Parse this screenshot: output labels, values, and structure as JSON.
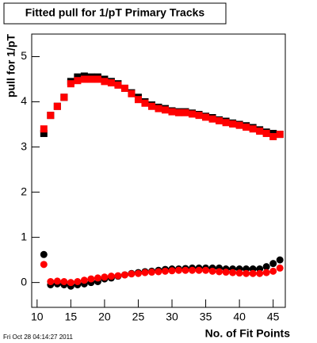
{
  "chart_data": {
    "type": "scatter",
    "title": "Fitted pull for 1/pT Primary Tracks",
    "x_label": "No. of Fit Points",
    "y_label": "pull for 1/pT",
    "timestamp": "Fri Oct 28 04:14:27 2011",
    "x": [
      11,
      12,
      13,
      14,
      15,
      16,
      17,
      18,
      19,
      20,
      21,
      22,
      23,
      24,
      25,
      26,
      27,
      28,
      29,
      30,
      31,
      32,
      33,
      34,
      35,
      36,
      37,
      38,
      39,
      40,
      41,
      42,
      43,
      44,
      45,
      46
    ],
    "series": [
      {
        "color": "#000000",
        "marker": "square",
        "values": [
          3.3,
          3.7,
          3.9,
          4.1,
          4.45,
          4.55,
          4.57,
          4.55,
          4.55,
          4.5,
          4.45,
          4.4,
          4.3,
          4.2,
          4.1,
          4.0,
          3.93,
          3.88,
          3.85,
          3.8,
          3.78,
          3.78,
          3.75,
          3.72,
          3.68,
          3.65,
          3.6,
          3.57,
          3.53,
          3.5,
          3.47,
          3.43,
          3.38,
          3.33,
          3.3,
          3.28
        ]
      },
      {
        "color": "#ff0000",
        "marker": "square",
        "values": [
          3.4,
          3.7,
          3.9,
          4.1,
          4.4,
          4.47,
          4.5,
          4.5,
          4.5,
          4.45,
          4.42,
          4.37,
          4.3,
          4.18,
          4.05,
          3.97,
          3.9,
          3.85,
          3.82,
          3.78,
          3.76,
          3.76,
          3.73,
          3.7,
          3.66,
          3.62,
          3.58,
          3.54,
          3.51,
          3.48,
          3.44,
          3.4,
          3.35,
          3.3,
          3.23,
          3.28
        ]
      },
      {
        "color": "#000000",
        "marker": "circle",
        "values": [
          0.62,
          -0.05,
          -0.03,
          -0.05,
          -0.08,
          -0.05,
          -0.03,
          0,
          0.02,
          0.08,
          0.1,
          0.14,
          0.17,
          0.2,
          0.22,
          0.24,
          0.25,
          0.27,
          0.29,
          0.3,
          0.3,
          0.31,
          0.32,
          0.32,
          0.32,
          0.32,
          0.32,
          0.3,
          0.3,
          0.3,
          0.3,
          0.3,
          0.3,
          0.35,
          0.42,
          0.5
        ]
      },
      {
        "color": "#ff0000",
        "marker": "circle",
        "values": [
          0.4,
          0.02,
          0.03,
          0.02,
          0,
          0.02,
          0.05,
          0.08,
          0.1,
          0.12,
          0.14,
          0.15,
          0.17,
          0.19,
          0.2,
          0.22,
          0.23,
          0.24,
          0.25,
          0.26,
          0.27,
          0.27,
          0.27,
          0.27,
          0.27,
          0.25,
          0.24,
          0.23,
          0.22,
          0.21,
          0.2,
          0.2,
          0.2,
          0.22,
          0.25,
          0.32
        ]
      }
    ],
    "xlim": [
      9.2,
      46.8
    ],
    "xticks": [
      10,
      15,
      20,
      25,
      30,
      35,
      40,
      45
    ],
    "ylim": [
      -0.55,
      5.5
    ],
    "yticks": [
      0,
      1,
      2,
      3,
      4,
      5
    ]
  }
}
